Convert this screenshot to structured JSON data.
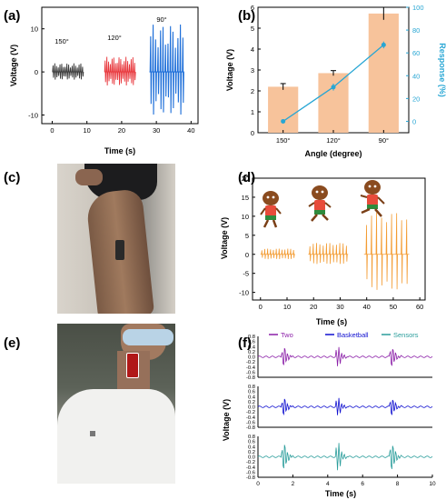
{
  "panels": {
    "a": {
      "label": "(a)",
      "xlabel": "Time (s)",
      "ylabel": "Voltage (V)",
      "angles": [
        "150°",
        "120°",
        "90°"
      ]
    },
    "b": {
      "label": "(b)",
      "xlabel": "Angle (degree)",
      "ylabel": "Voltage (V)",
      "y2label": "Response (%)"
    },
    "c": {
      "label": "(c)"
    },
    "d": {
      "label": "(d)",
      "xlabel": "Time (s)",
      "ylabel": "Voltage (V)"
    },
    "e": {
      "label": "(e)"
    },
    "f": {
      "label": "(f)",
      "xlabel": "Time (s)",
      "ylabel": "Voltage (V)"
    }
  },
  "colors": {
    "black_trace": "#3a3a3a",
    "red_trace": "#e8363b",
    "blue_trace": "#1e6fd9",
    "bar": "#f7c39b",
    "response": "#27a6d4",
    "orange": "#f39c33",
    "purple": "#8b1fa8",
    "navy": "#1010d0",
    "teal": "#2a9d9b"
  },
  "chart_data": [
    {
      "panel": "a",
      "type": "line",
      "xlabel": "Time (s)",
      "ylabel": "Voltage (V)",
      "xlim": [
        -3,
        42
      ],
      "ylim": [
        -12,
        15
      ],
      "xticks": [
        0,
        10,
        20,
        30,
        40
      ],
      "yticks": [
        -10,
        0,
        10
      ],
      "segments": [
        {
          "angle": "150°",
          "t_start": 0,
          "t_end": 9,
          "peak_amplitude": 2,
          "color": "#3a3a3a"
        },
        {
          "angle": "120°",
          "t_start": 15,
          "t_end": 24,
          "peak_amplitude": 3.5,
          "color": "#e8363b"
        },
        {
          "angle": "90°",
          "t_start": 28,
          "t_end": 38,
          "peak_amplitude": 11,
          "color": "#1e6fd9"
        }
      ]
    },
    {
      "panel": "b",
      "type": "bar",
      "categories": [
        "150°",
        "120°",
        "90°"
      ],
      "series": [
        {
          "axis": "left",
          "values": [
            2.2,
            2.85,
            5.7
          ],
          "errors": [
            0.15,
            0.12,
            0.3
          ]
        },
        {
          "axis": "right",
          "values": [
            0,
            30,
            67
          ],
          "errors": [
            0,
            3,
            3
          ]
        }
      ],
      "xlabel": "Angle (degree)",
      "ylabel": "Voltage (V)",
      "y2label": "Response (%)",
      "ylim": [
        0,
        6
      ],
      "y2lim": [
        -10,
        100
      ],
      "yticks": [
        0,
        1,
        2,
        3,
        4,
        5,
        6
      ],
      "y2ticks": [
        0,
        20,
        40,
        60,
        80,
        100
      ]
    },
    {
      "panel": "d",
      "type": "line",
      "xlabel": "Time (s)",
      "ylabel": "Voltage (V)",
      "xlim": [
        -3,
        62
      ],
      "ylim": [
        -12,
        20
      ],
      "xticks": [
        0,
        10,
        20,
        30,
        40,
        50,
        60
      ],
      "yticks": [
        -10,
        -5,
        0,
        5,
        10,
        15,
        20
      ],
      "segments": [
        {
          "t_start": 0,
          "t_end": 13,
          "peak_amplitude": 1.5
        },
        {
          "t_start": 18,
          "t_end": 33,
          "peak_amplitude": 3
        },
        {
          "t_start": 39,
          "t_end": 56,
          "peak_amplitude": 11
        }
      ]
    },
    {
      "panel": "f",
      "type": "line",
      "xlabel": "Time (s)",
      "ylabel": "Voltage (V)",
      "xlim": [
        0,
        10
      ],
      "xticks": [
        0,
        2,
        4,
        6,
        8,
        10
      ],
      "ylim": [
        -0.8,
        0.8
      ],
      "yticks": [
        "0.8",
        "0.6",
        "0.4",
        "0.2",
        "0.0",
        "-0.2",
        "-0.4",
        "-0.6",
        "-0.8"
      ],
      "series": [
        {
          "name": "Two",
          "color": "#8b1fa8",
          "events_s": [
            1.5,
            4.6,
            7.7
          ],
          "peak_amplitude": 0.5
        },
        {
          "name": "Basketball",
          "color": "#1010d0",
          "events_s": [
            1.5,
            4.6,
            7.7
          ],
          "peak_amplitude": 0.45
        },
        {
          "name": "Sensors",
          "color": "#2a9d9b",
          "events_s": [
            1.5,
            4.6,
            7.7
          ],
          "peak_amplitude": 0.7
        }
      ]
    }
  ]
}
